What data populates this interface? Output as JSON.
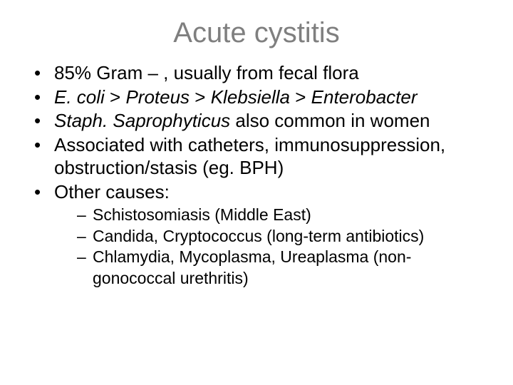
{
  "title": "Acute cystitis",
  "bullets": {
    "b1": "85% Gram – , usually from fecal flora",
    "b2_pre": "E. coli",
    "b2_gt1": " > ",
    "b2_proteus": "Proteus",
    "b2_gt2": " > ",
    "b2_klebsiella": "Klebsiella",
    "b2_gt3": " > ",
    "b2_enterobacter": "Enterobacter",
    "b3_pre": "Staph. Saprophyticus",
    "b3_post": " also common in women",
    "b4": "Associated with catheters, immunosuppression, obstruction/stasis (eg. BPH)",
    "b5": "Other causes:"
  },
  "sub": {
    "s1": "Schistosomiasis (Middle East)",
    "s2": "Candida, Cryptococcus (long-term antibiotics)",
    "s3": "Chlamydia, Mycoplasma, Ureaplasma (non-gonococcal urethritis)"
  },
  "colors": {
    "title": "#7f7f7f",
    "text": "#000000",
    "background": "#ffffff"
  },
  "typography": {
    "title_fontsize": 40,
    "body_fontsize": 26,
    "sub_fontsize": 23,
    "font_family": "Arial"
  }
}
